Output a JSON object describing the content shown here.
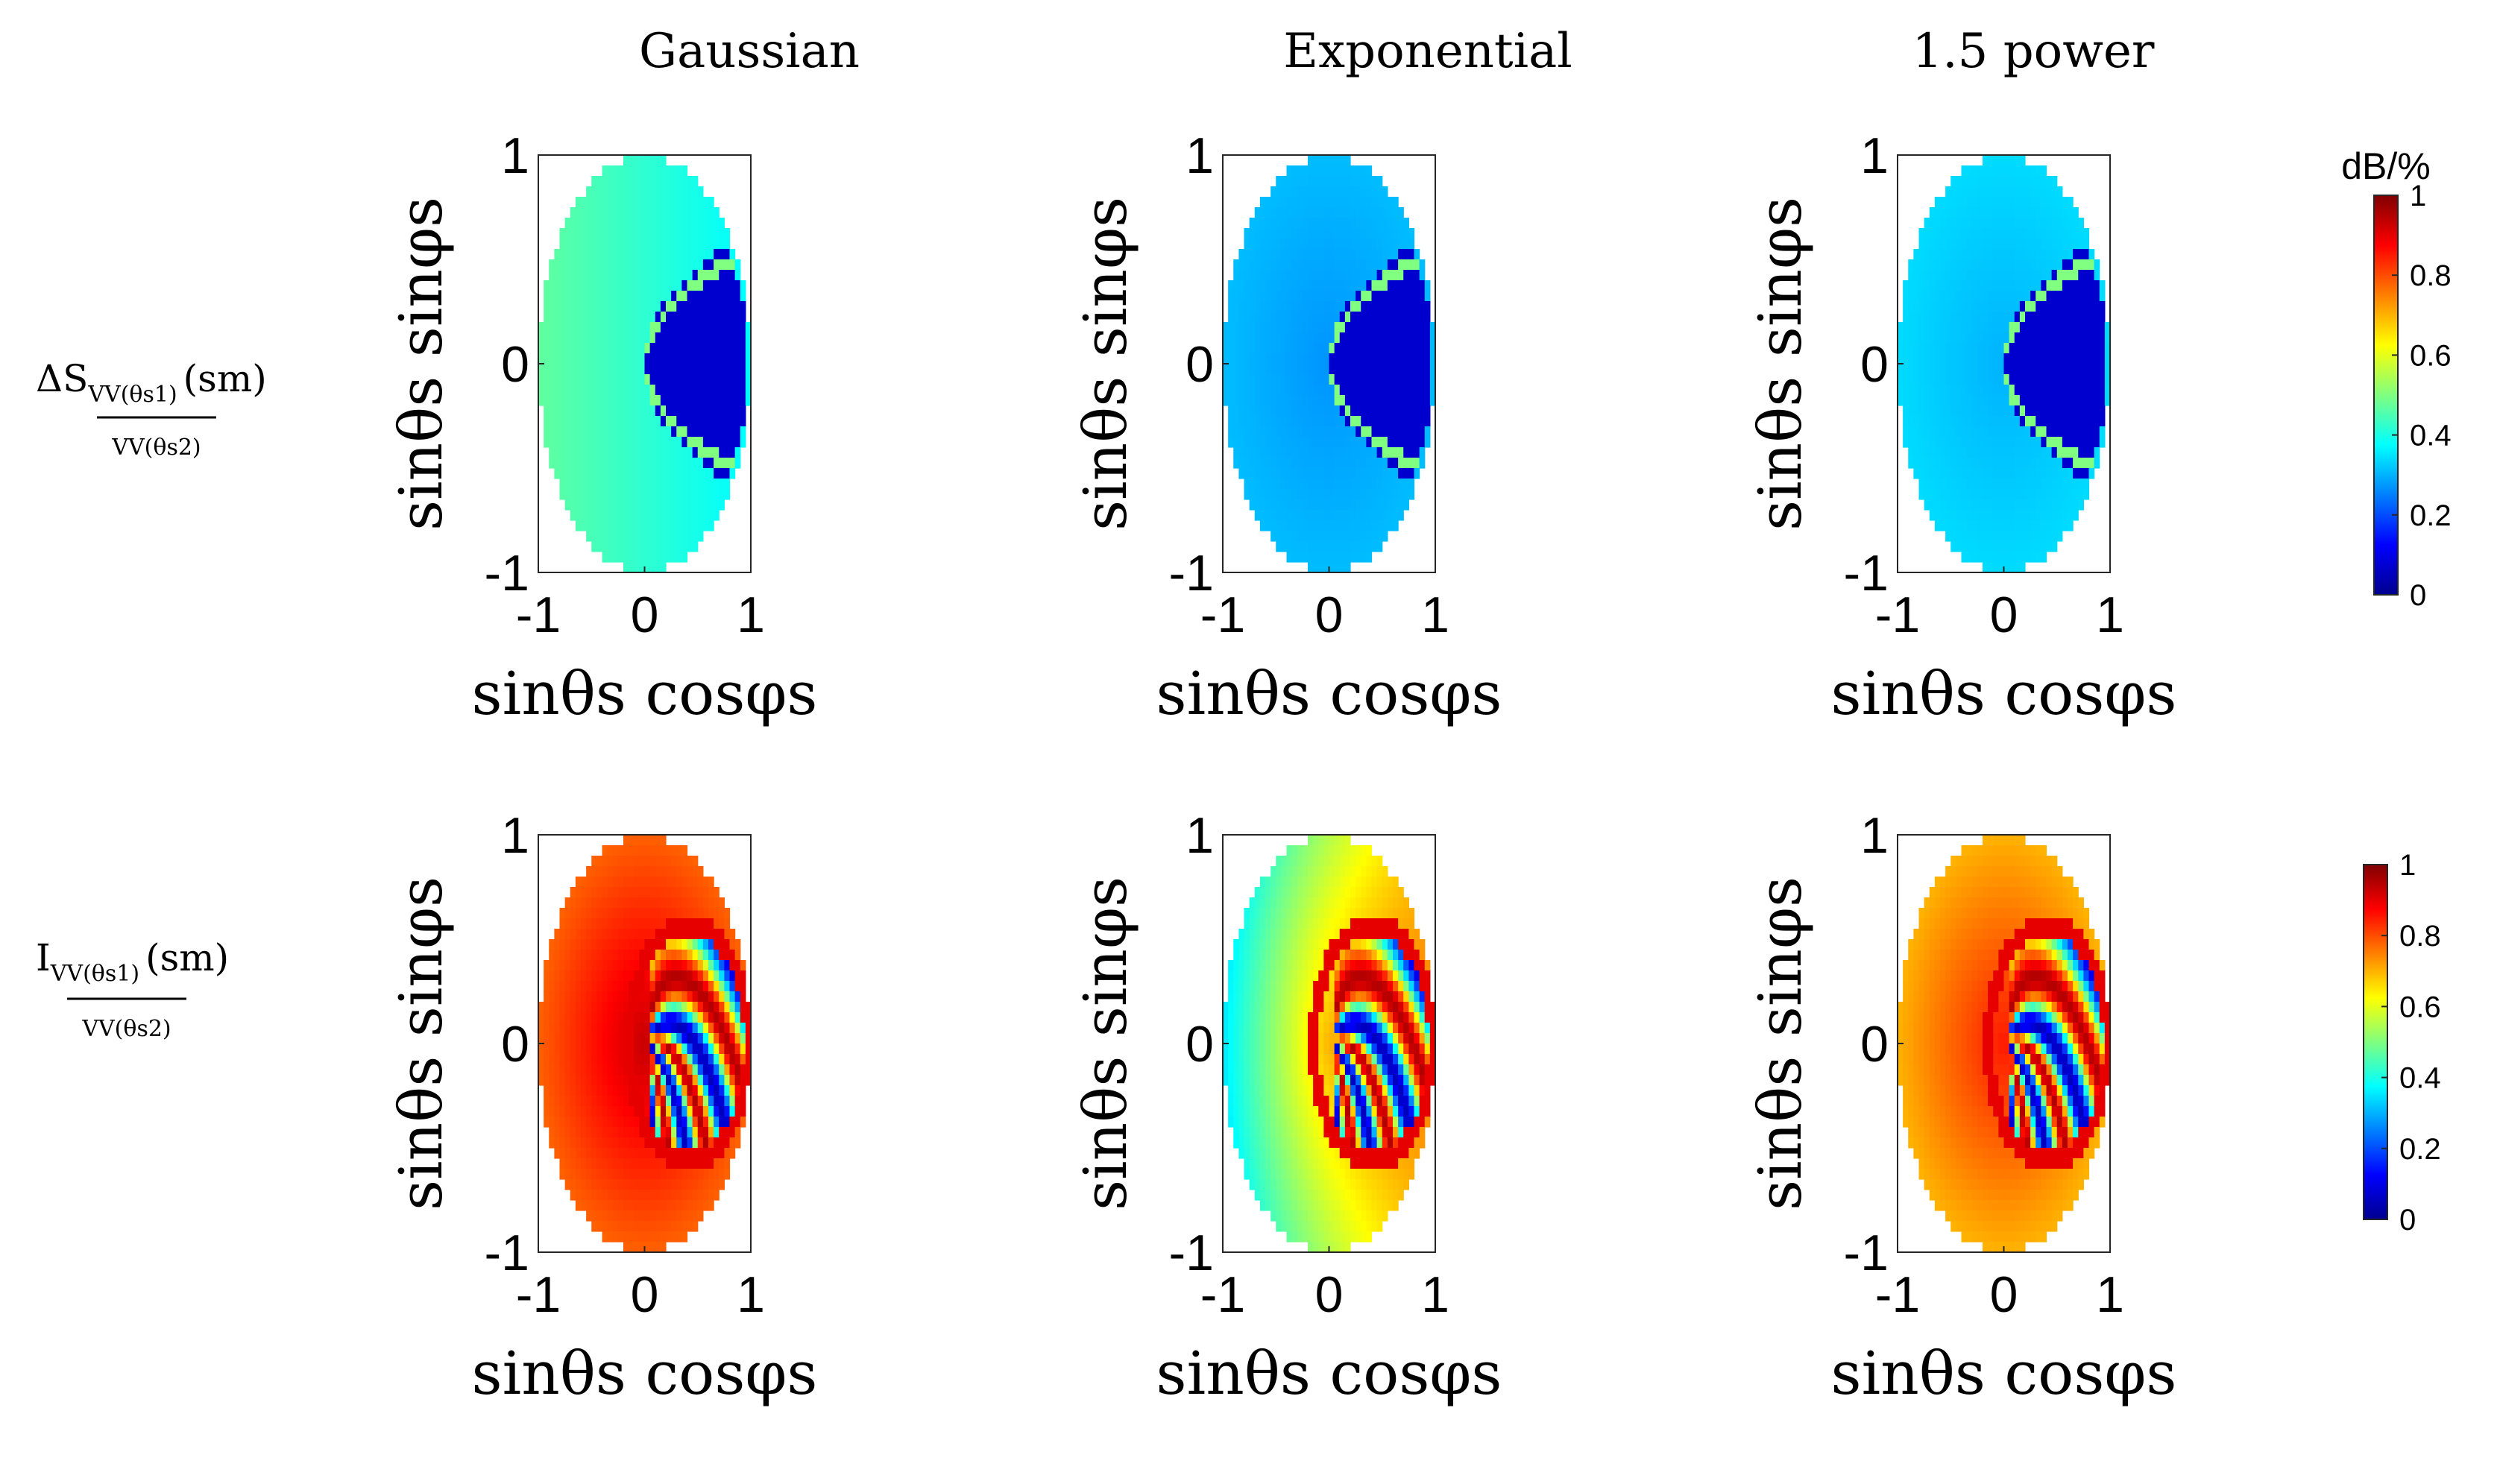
{
  "figure": {
    "column_titles": [
      "Gaussian",
      "Exponential",
      "1.5 power"
    ],
    "row_labels": [
      {
        "main": "ΔS",
        "sub": "VV(θs1)",
        "den": "VV(θs2)",
        "arg": "(sm)"
      },
      {
        "main": "I",
        "sub": "VV(θs1)",
        "den": "VV(θs2)",
        "arg": "(sm)"
      }
    ]
  },
  "chart_data": [
    {
      "type": "heatmap",
      "panel": "row1-gaussian",
      "title": "Gaussian",
      "xlabel": "sinθs cosφs",
      "ylabel": "sinθs sinφs",
      "xlim": [
        -1,
        1
      ],
      "ylim": [
        -1,
        1
      ],
      "xticks": [
        "-1",
        "0",
        "1"
      ],
      "yticks": [
        "-1",
        "0",
        "1"
      ],
      "clim": [
        0,
        1
      ],
      "row": 0,
      "col": 0
    },
    {
      "type": "heatmap",
      "panel": "row1-exponential",
      "title": "Exponential",
      "xlabel": "sinθs cosφs",
      "ylabel": "sinθs sinφs",
      "xlim": [
        -1,
        1
      ],
      "ylim": [
        -1,
        1
      ],
      "xticks": [
        "-1",
        "0",
        "1"
      ],
      "yticks": [
        "-1",
        "0",
        "1"
      ],
      "clim": [
        0,
        1
      ],
      "row": 0,
      "col": 1
    },
    {
      "type": "heatmap",
      "panel": "row1-1.5power",
      "title": "1.5 power",
      "xlabel": "sinθs cosφs",
      "ylabel": "sinθs sinφs",
      "xlim": [
        -1,
        1
      ],
      "ylim": [
        -1,
        1
      ],
      "xticks": [
        "-1",
        "0",
        "1"
      ],
      "yticks": [
        "-1",
        "0",
        "1"
      ],
      "clim": [
        0,
        1
      ],
      "row": 0,
      "col": 2
    },
    {
      "type": "heatmap",
      "panel": "row2-gaussian",
      "title": "Gaussian",
      "xlabel": "sinθs cosφs",
      "ylabel": "sinθs sinφs",
      "xlim": [
        -1,
        1
      ],
      "ylim": [
        -1,
        1
      ],
      "xticks": [
        "-1",
        "0",
        "1"
      ],
      "yticks": [
        "-1",
        "0",
        "1"
      ],
      "clim": [
        0,
        1
      ],
      "row": 1,
      "col": 0
    },
    {
      "type": "heatmap",
      "panel": "row2-exponential",
      "title": "Exponential",
      "xlabel": "sinθs cosφs",
      "ylabel": "sinθs sinφs",
      "xlim": [
        -1,
        1
      ],
      "ylim": [
        -1,
        1
      ],
      "xticks": [
        "-1",
        "0",
        "1"
      ],
      "yticks": [
        "-1",
        "0",
        "1"
      ],
      "clim": [
        0,
        1
      ],
      "row": 1,
      "col": 1
    },
    {
      "type": "heatmap",
      "panel": "row2-1.5power",
      "title": "1.5 power",
      "xlabel": "sinθs cosφs",
      "ylabel": "sinθs sinφs",
      "xlim": [
        -1,
        1
      ],
      "ylim": [
        -1,
        1
      ],
      "xticks": [
        "-1",
        "0",
        "1"
      ],
      "yticks": [
        "-1",
        "0",
        "1"
      ],
      "clim": [
        0,
        1
      ],
      "row": 1,
      "col": 2
    }
  ],
  "colorbars": [
    {
      "title": "dB/%",
      "ticks": [
        "0",
        "0.2",
        "0.4",
        "0.6",
        "0.8",
        "1"
      ],
      "range": [
        0,
        1
      ],
      "colormap": "jet"
    },
    {
      "title": "",
      "ticks": [
        "0",
        "0.2",
        "0.4",
        "0.6",
        "0.8",
        "1"
      ],
      "range": [
        0,
        1
      ],
      "colormap": "jet"
    }
  ],
  "colors": {
    "jet_stops": [
      "#00008f",
      "#0000ff",
      "#00ffff",
      "#ffff00",
      "#ff0000",
      "#800000"
    ],
    "axes": "#262626",
    "text": "#000000"
  }
}
